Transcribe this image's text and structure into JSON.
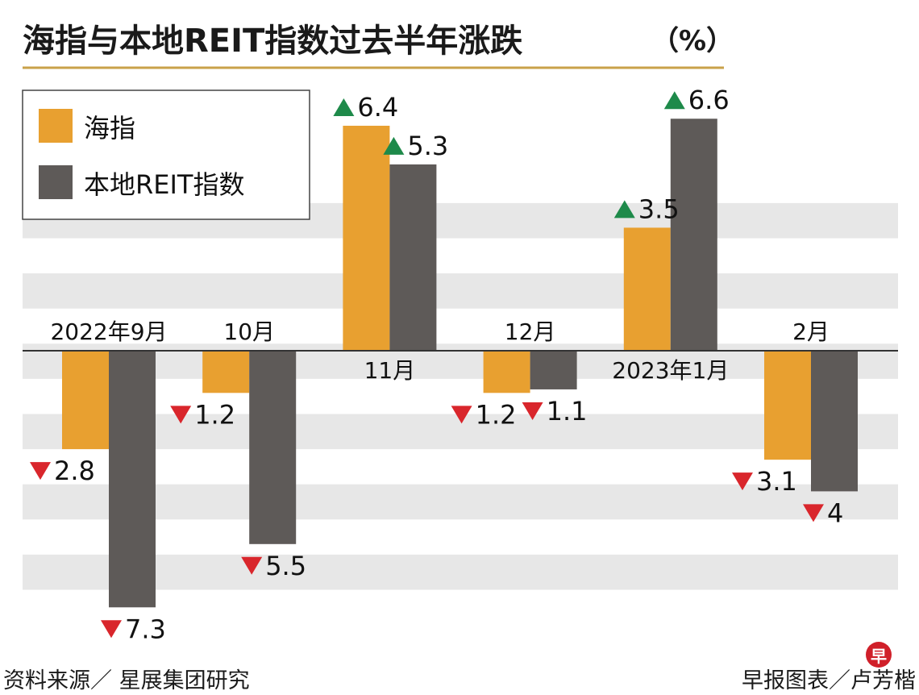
{
  "chart_data": {
    "type": "bar",
    "title": "海指与本地REIT指数过去半年涨跌",
    "title_unit": "（%）",
    "categories": [
      "2022年9月",
      "10月",
      "11月",
      "12月",
      "2023年1月",
      "2月"
    ],
    "series": [
      {
        "name": "海指",
        "color": "#e8a030",
        "values": [
          -2.8,
          -1.2,
          6.4,
          -1.2,
          3.5,
          -3.1
        ]
      },
      {
        "name": "本地REIT指数",
        "color": "#5e5a58",
        "values": [
          -7.3,
          -5.5,
          5.3,
          -1.1,
          6.6,
          -4.0
        ]
      }
    ],
    "value_labels": [
      [
        "2.8",
        "7.3"
      ],
      [
        "1.2",
        "5.5"
      ],
      [
        "6.4",
        "5.3"
      ],
      [
        "1.2",
        "1.1"
      ],
      [
        "3.5",
        "6.6"
      ],
      [
        "3.1",
        "4"
      ]
    ],
    "up_color": "#1e8a4a",
    "down_color": "#d9262c",
    "ylim": [
      -8,
      8
    ],
    "grid": "alternating horizontal bands",
    "legend_position": "top-left"
  },
  "footer": {
    "source": "资料来源／ 星展集团研究",
    "credit": "早报图表／卢芳楷",
    "logo": "早"
  }
}
